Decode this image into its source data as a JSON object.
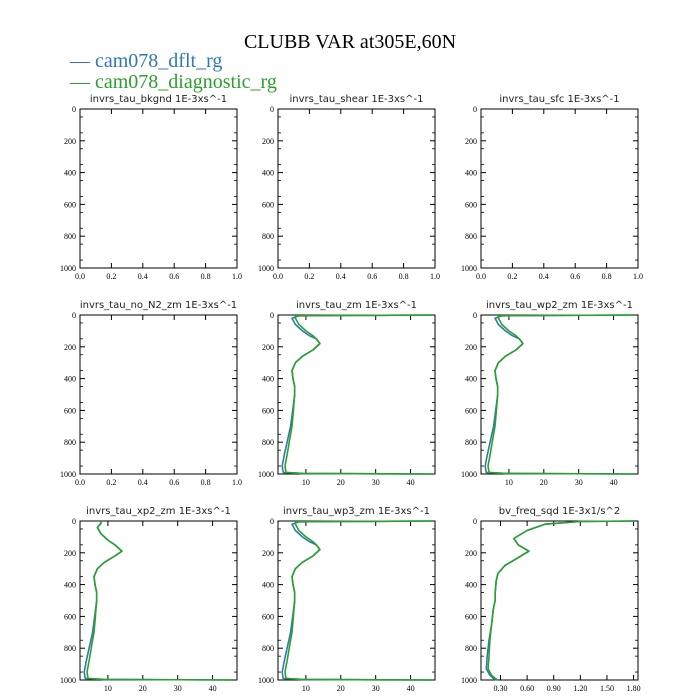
{
  "title": "CLUBB VAR at305E,60N",
  "colors": {
    "series1": "#2f78b4",
    "series2": "#2ca02c",
    "axis": "#000000"
  },
  "legend": [
    {
      "label": "cam078_dflt_rg",
      "color": "#2f78b4"
    },
    {
      "label": "cam078_diagnostic_rg",
      "color": "#2ca02c"
    }
  ],
  "chart_data": [
    {
      "type": "line",
      "title": "invrs_tau_bkgnd   1E-3xs^-1",
      "xlim": [
        0,
        1
      ],
      "ylim": [
        0,
        1000
      ],
      "y_inverted": true,
      "xticks": [
        "0.0",
        "0.2",
        "0.4",
        "0.6",
        "0.8",
        "1.0"
      ],
      "yticks": [
        "0",
        "200",
        "400",
        "600",
        "800",
        "1000"
      ],
      "series": []
    },
    {
      "type": "line",
      "title": "invrs_tau_shear   1E-3xs^-1",
      "xlim": [
        0,
        1
      ],
      "ylim": [
        0,
        1000
      ],
      "y_inverted": true,
      "xticks": [
        "0.0",
        "0.2",
        "0.4",
        "0.6",
        "0.8",
        "1.0"
      ],
      "yticks": [
        "0",
        "200",
        "400",
        "600",
        "800",
        "1000"
      ],
      "series": []
    },
    {
      "type": "line",
      "title": "invrs_tau_sfc   1E-3xs^-1",
      "xlim": [
        0,
        1
      ],
      "ylim": [
        0,
        1000
      ],
      "y_inverted": true,
      "xticks": [
        "0.0",
        "0.2",
        "0.4",
        "0.6",
        "0.8",
        "1.0"
      ],
      "yticks": [
        "0",
        "200",
        "400",
        "600",
        "800",
        "1000"
      ],
      "series": []
    },
    {
      "type": "line",
      "title": "invrs_tau_no_N2_zm   1E-3xs^-1",
      "xlim": [
        0,
        1
      ],
      "ylim": [
        0,
        1000
      ],
      "y_inverted": true,
      "xticks": [
        "0.0",
        "0.2",
        "0.4",
        "0.6",
        "0.8",
        "1.0"
      ],
      "yticks": [
        "0",
        "200",
        "400",
        "600",
        "800",
        "1000"
      ],
      "series": []
    },
    {
      "type": "line",
      "title": "invrs_tau_zm   1E-3xs^-1",
      "xlim": [
        2,
        47
      ],
      "ylim": [
        0,
        1000
      ],
      "y_inverted": true,
      "xticks": [
        "10",
        "20",
        "30",
        "40"
      ],
      "yticks": [
        "0",
        "200",
        "400",
        "600",
        "800",
        "1000"
      ],
      "series": [
        {
          "x": [
            46,
            20,
            8,
            6,
            7,
            9,
            11,
            13,
            14,
            12,
            9,
            7,
            6,
            6.3,
            6.8,
            6.8,
            6.5,
            6.2,
            5.6,
            4.6,
            3.8,
            3.2,
            3.5,
            9,
            46
          ],
          "y": [
            0,
            3,
            5,
            20,
            60,
            100,
            130,
            150,
            180,
            220,
            260,
            300,
            350,
            400,
            450,
            500,
            550,
            600,
            700,
            800,
            880,
            950,
            990,
            996,
            1000
          ]
        },
        {
          "x": [
            46,
            20,
            7,
            7,
            8,
            10,
            12,
            13,
            14,
            12,
            9,
            7,
            6,
            6.3,
            6.8,
            6.8,
            6.6,
            6.4,
            6,
            5.2,
            4.6,
            4,
            4.3,
            9,
            46
          ],
          "y": [
            0,
            3,
            5,
            20,
            60,
            100,
            130,
            150,
            180,
            220,
            260,
            300,
            350,
            400,
            450,
            500,
            550,
            600,
            700,
            800,
            880,
            950,
            990,
            996,
            1000
          ]
        }
      ]
    },
    {
      "type": "line",
      "title": "invrs_tau_wp2_zm   1E-3xs^-1",
      "xlim": [
        2,
        47
      ],
      "ylim": [
        0,
        1000
      ],
      "y_inverted": true,
      "xticks": [
        "10",
        "20",
        "30",
        "40"
      ],
      "yticks": [
        "0",
        "200",
        "400",
        "600",
        "800",
        "1000"
      ],
      "series": [
        {
          "x": [
            46,
            20,
            8,
            6,
            7,
            9,
            11,
            13,
            14,
            12,
            9,
            7,
            6,
            6.3,
            6.8,
            6.8,
            6.5,
            6.2,
            5.6,
            4.6,
            3.8,
            3.2,
            3.5,
            9,
            46
          ],
          "y": [
            0,
            3,
            5,
            20,
            60,
            100,
            130,
            150,
            180,
            220,
            260,
            300,
            350,
            400,
            450,
            500,
            550,
            600,
            700,
            800,
            880,
            950,
            990,
            996,
            1000
          ]
        },
        {
          "x": [
            46,
            20,
            7,
            7,
            8,
            10,
            12,
            13,
            14,
            12,
            9,
            7,
            6,
            6.3,
            6.8,
            6.8,
            6.6,
            6.4,
            6,
            5.2,
            4.6,
            4,
            4.3,
            9,
            46
          ],
          "y": [
            0,
            3,
            5,
            20,
            60,
            100,
            130,
            150,
            180,
            220,
            260,
            300,
            350,
            400,
            450,
            500,
            550,
            600,
            700,
            800,
            880,
            950,
            990,
            996,
            1000
          ]
        }
      ]
    },
    {
      "type": "line",
      "title": "invrs_tau_xp2_zm   1E-3xs^-1",
      "xlim": [
        2,
        47
      ],
      "ylim": [
        0,
        1000
      ],
      "y_inverted": true,
      "xticks": [
        "10",
        "20",
        "30",
        "40"
      ],
      "yticks": [
        "0",
        "200",
        "400",
        "600",
        "800",
        "1000"
      ],
      "series": [
        {
          "x": [
            8,
            8,
            7,
            8,
            10,
            12,
            13,
            14,
            12,
            9,
            7,
            6,
            6.3,
            6.8,
            6.8,
            6.5,
            6.2,
            5.6,
            4.6,
            3.8,
            3.2,
            3.5,
            9,
            46
          ],
          "y": [
            0,
            15,
            40,
            80,
            120,
            150,
            170,
            190,
            220,
            260,
            300,
            350,
            400,
            450,
            500,
            550,
            600,
            700,
            800,
            880,
            950,
            990,
            996,
            1000
          ]
        },
        {
          "x": [
            8,
            8,
            7,
            8,
            10,
            12,
            13,
            14,
            12,
            9,
            7,
            6,
            6.3,
            6.8,
            6.8,
            6.6,
            6.4,
            6,
            5.2,
            4.6,
            4,
            4.3,
            9,
            46
          ],
          "y": [
            0,
            15,
            40,
            80,
            120,
            150,
            170,
            190,
            220,
            260,
            300,
            350,
            400,
            450,
            500,
            550,
            600,
            700,
            800,
            880,
            950,
            990,
            996,
            1000
          ]
        }
      ]
    },
    {
      "type": "line",
      "title": "invrs_tau_wp3_zm   1E-3xs^-1",
      "xlim": [
        2,
        47
      ],
      "ylim": [
        0,
        1000
      ],
      "y_inverted": true,
      "xticks": [
        "10",
        "20",
        "30",
        "40"
      ],
      "yticks": [
        "0",
        "200",
        "400",
        "600",
        "800",
        "1000"
      ],
      "series": [
        {
          "x": [
            46,
            20,
            8,
            6,
            7,
            9,
            11,
            13,
            14,
            12,
            9,
            7,
            6,
            6.3,
            6.8,
            6.8,
            6.5,
            6.2,
            5.6,
            4.6,
            3.8,
            3.2,
            3.5,
            9,
            46
          ],
          "y": [
            0,
            3,
            5,
            20,
            60,
            100,
            130,
            150,
            180,
            220,
            260,
            300,
            350,
            400,
            450,
            500,
            550,
            600,
            700,
            800,
            880,
            950,
            990,
            996,
            1000
          ]
        },
        {
          "x": [
            46,
            20,
            7,
            7,
            8,
            10,
            12,
            13,
            14,
            12,
            9,
            7,
            6,
            6.3,
            6.8,
            6.8,
            6.6,
            6.4,
            6,
            5.2,
            4.6,
            4,
            4.3,
            9,
            46
          ],
          "y": [
            0,
            3,
            5,
            20,
            60,
            100,
            130,
            150,
            180,
            220,
            260,
            300,
            350,
            400,
            450,
            500,
            550,
            600,
            700,
            800,
            880,
            950,
            990,
            996,
            1000
          ]
        }
      ]
    },
    {
      "type": "line",
      "title": "bv_freq_sqd   1E-3x1/s^2",
      "xlim": [
        0.08,
        1.85
      ],
      "ylim": [
        0,
        1000
      ],
      "y_inverted": true,
      "xticks": [
        "0.30",
        "0.60",
        "0.90",
        "1.20",
        "1.50",
        "1.80"
      ],
      "yticks": [
        "0",
        "200",
        "400",
        "600",
        "800",
        "1000"
      ],
      "series": [
        {
          "x": [
            1.82,
            1.2,
            0.8,
            0.6,
            0.45,
            0.5,
            0.62,
            0.5,
            0.35,
            0.27,
            0.25,
            0.24,
            0.24,
            0.22,
            0.2,
            0.17,
            0.15,
            0.14,
            0.18,
            0.22,
            0.25
          ],
          "y": [
            0,
            3,
            20,
            60,
            110,
            150,
            190,
            230,
            280,
            330,
            380,
            450,
            500,
            550,
            650,
            750,
            850,
            930,
            970,
            990,
            1000
          ]
        },
        {
          "x": [
            1.82,
            1.2,
            0.8,
            0.6,
            0.45,
            0.5,
            0.62,
            0.5,
            0.35,
            0.27,
            0.25,
            0.24,
            0.24,
            0.22,
            0.2,
            0.18,
            0.17,
            0.16,
            0.2,
            0.24,
            0.27
          ],
          "y": [
            0,
            3,
            20,
            60,
            110,
            150,
            190,
            230,
            280,
            330,
            380,
            450,
            500,
            550,
            650,
            750,
            850,
            930,
            970,
            990,
            1000
          ]
        }
      ]
    }
  ]
}
